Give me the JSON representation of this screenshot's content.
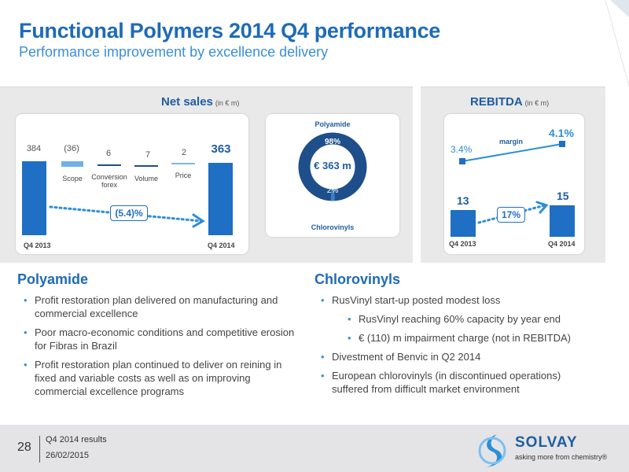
{
  "header": {
    "title": "Functional Polymers 2014 Q4 performance",
    "subtitle": "Performance improvement by excellence delivery"
  },
  "net_sales": {
    "title": "Net sales",
    "unit": "(in € m)",
    "bars": [
      {
        "label": "",
        "value": "384"
      },
      {
        "label": "Scope",
        "value": "(36)"
      },
      {
        "label": "Conversion forex",
        "value": "6"
      },
      {
        "label": "Volume",
        "value": "7"
      },
      {
        "label": "Price",
        "value": "2"
      },
      {
        "label": "",
        "value": "363"
      }
    ],
    "x_start": "Q4 2013",
    "x_end": "Q4 2014",
    "change": "(5.4)%",
    "donut": {
      "top_label": "Polyamide",
      "bottom_label": "Chlorovinyls",
      "center": "€ 363 m",
      "polyamide_pct": "98%",
      "chlorovinyls_pct": "2%"
    }
  },
  "rebitda": {
    "title": "REBITDA",
    "unit": "(in € m)",
    "margin_label": "margin",
    "margin_start": "3.4%",
    "margin_end": "4.1%",
    "value_start": "13",
    "value_end": "15",
    "change": "17%",
    "x_start": "Q4 2013",
    "x_end": "Q4 2014"
  },
  "polyamide": {
    "heading": "Polyamide",
    "bullets": [
      "Profit restoration plan delivered on manufacturing and commercial excellence",
      "Poor macro-economic conditions and competitive erosion for Fibras in Brazil",
      "Profit restoration plan continued to deliver on reining in fixed and variable costs as well as on improving commercial excellence programs"
    ]
  },
  "chlorovinyls": {
    "heading": "Chlorovinyls",
    "b1": "RusVinyl start-up posted modest loss",
    "s1": "RusVinyl reaching 60% capacity by year end",
    "s2": "€ (110) m impairment charge (not in REBITDA)",
    "b2": "Divestment of Benvic in Q2 2014",
    "b3": "European chlorovinyls (in discontinued operations) suffered from difficult market environment"
  },
  "footer": {
    "page": "28",
    "doc": "Q4 2014 results",
    "date": "26/02/2015",
    "brand": "SOLVAY",
    "tagline": "asking more from chemistry®"
  },
  "colors": {
    "accent": "#1f6fc4",
    "title": "#1e6bb8",
    "panel": "#e9e9ea"
  },
  "icons": [
    "solvay-logo-icon",
    "dotted-trend-arrow-icon"
  ]
}
